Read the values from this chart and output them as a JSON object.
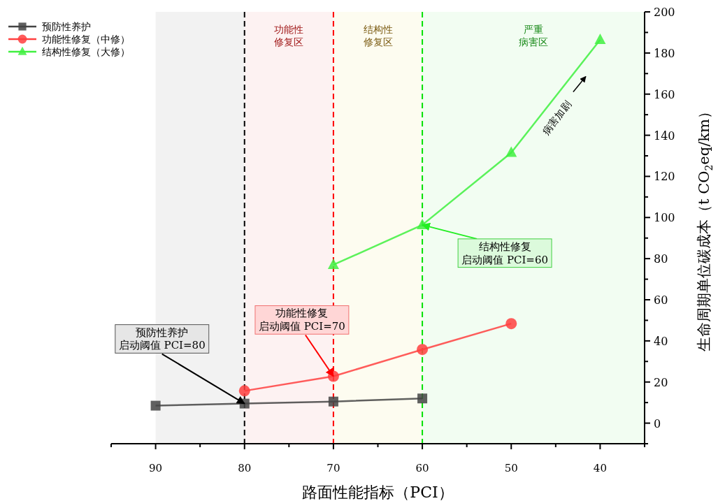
{
  "chart_data": {
    "type": "line",
    "xlabel": "路面性能指标（PCI）",
    "ylabel": "生命周期单位碳成本（t CO$_{2}$eq/km）",
    "x": [
      90,
      80,
      70,
      60,
      50,
      40
    ],
    "series": [
      {
        "name": "预防性养护",
        "color": "#444444",
        "marker": "square",
        "values": [
          8.5,
          9.5,
          10.5,
          12,
          null,
          null
        ]
      },
      {
        "name": "功能性修复（中修）",
        "color": "#ff4040",
        "marker": "circle",
        "values": [
          null,
          15.7,
          22.8,
          35.8,
          48.4,
          null
        ]
      },
      {
        "name": "结构性修复（大修）",
        "color": "#40f040",
        "marker": "triangle",
        "values": [
          null,
          null,
          77,
          96.4,
          131.5,
          186.4
        ]
      }
    ],
    "xlim": [
      95,
      35
    ],
    "xticks": [
      90,
      80,
      70,
      60,
      50,
      40
    ],
    "ylim": [
      -10,
      200
    ],
    "yticks": [
      0,
      20,
      40,
      60,
      80,
      100,
      120,
      140,
      160,
      180,
      200
    ],
    "bands": [
      {
        "axis": "x",
        "from": 90,
        "to": 80,
        "color": "#f2f2f2"
      },
      {
        "axis": "x",
        "from": 80,
        "to": 70,
        "color": "#fdf2f2",
        "label": "功能性修复区"
      },
      {
        "axis": "x",
        "from": 70,
        "to": 60,
        "color": "#fdfcf0",
        "label": "结构性修复区"
      },
      {
        "axis": "x",
        "from": 60,
        "to": 35,
        "color": "#f2fdf2",
        "label": "严重病害区"
      }
    ],
    "ref_lines": [
      {
        "axis": "x",
        "value": 80,
        "color": "#000000",
        "line_style": "dashed"
      },
      {
        "axis": "x",
        "value": 70,
        "color": "#ff0000",
        "line_style": "dashed"
      },
      {
        "axis": "x",
        "value": 60,
        "color": "#00e000",
        "line_style": "dashed"
      }
    ],
    "annotations": [
      {
        "text": "预防性养护启动阈值 PCI=80",
        "x": 80,
        "y": 9.5
      },
      {
        "text": "功能性修复启动阈值 PCI=70",
        "x": 70,
        "y": 22.8
      },
      {
        "text": "结构性修复启动阈值 PCI=60",
        "x": 60,
        "y": 96.4
      },
      "病害加剧"
    ],
    "legend": "top left",
    "grid": false
  }
}
